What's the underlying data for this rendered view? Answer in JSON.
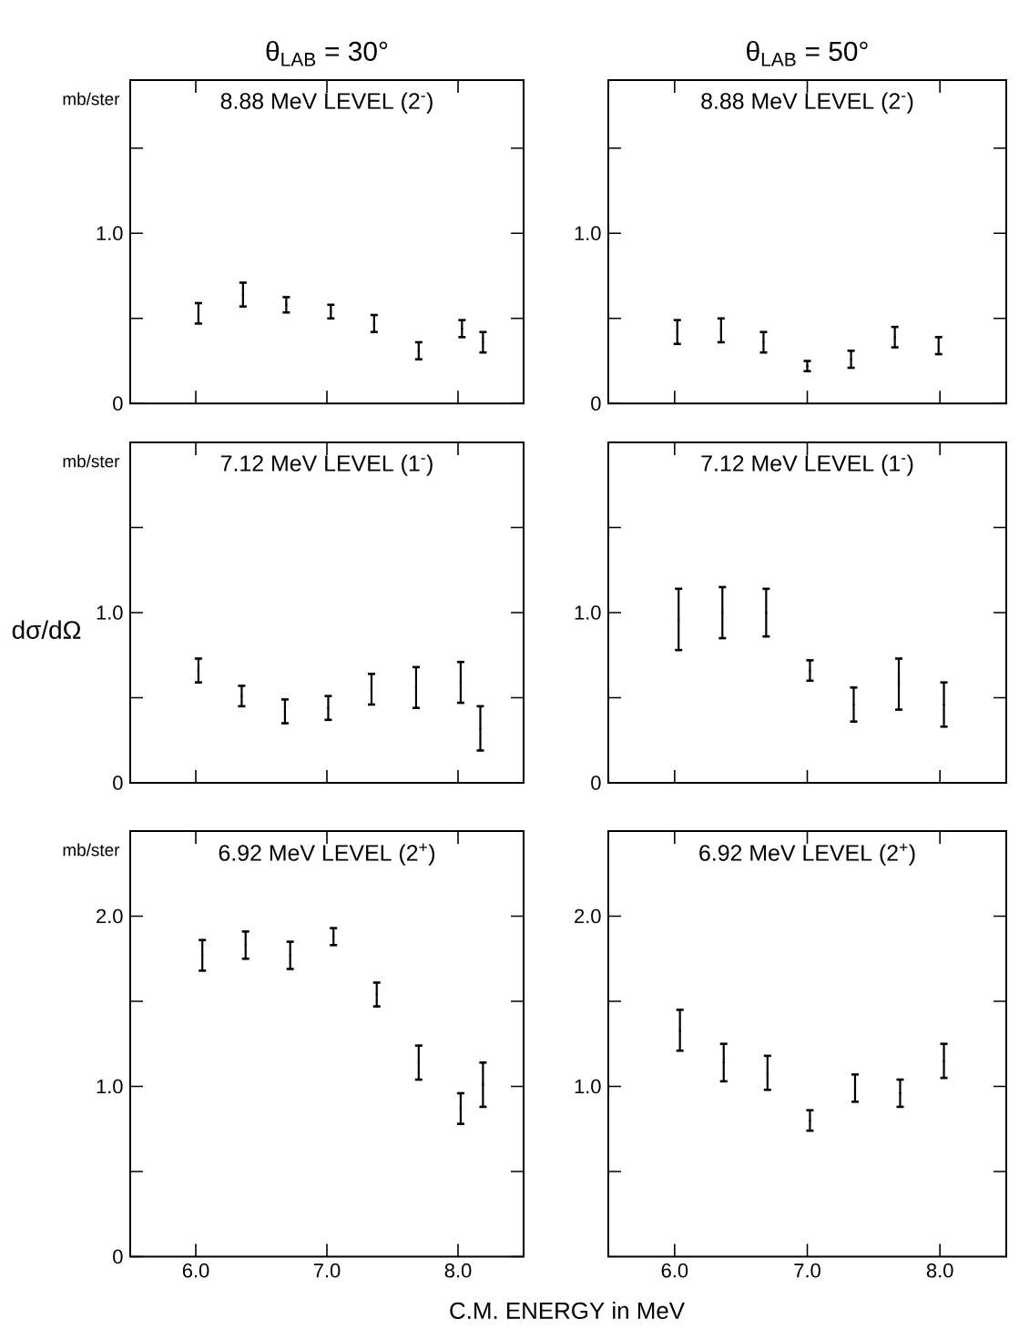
{
  "chart_data": [
    {
      "type": "scatter",
      "title": "8.88 MeV LEVEL (2$^{-}$)",
      "subtitle": "θ$_{LAB}$ = 30°",
      "ylabel": "mb/ster",
      "color": "#000000",
      "x": [
        6.02,
        6.36,
        6.69,
        7.03,
        7.36,
        7.7,
        8.03,
        8.19
      ],
      "values": [
        0.53,
        0.64,
        0.58,
        0.54,
        0.47,
        0.31,
        0.44,
        0.36
      ],
      "errors": [
        0.06,
        0.07,
        0.045,
        0.04,
        0.05,
        0.05,
        0.05,
        0.06
      ],
      "xlim": [
        5.5,
        8.5
      ],
      "xticks": [
        {
          "value": 6,
          "label": null
        },
        {
          "value": 7,
          "label": null
        },
        {
          "value": 8,
          "label": null
        }
      ],
      "ylim": [
        0,
        1.9
      ],
      "yticks": [
        0,
        {
          "value": 0.5,
          "label": null
        },
        {
          "value": 1,
          "label": "1.0"
        },
        {
          "value": 1.5,
          "label": null
        }
      ],
      "tick_labels": "y"
    },
    {
      "type": "scatter",
      "title": "8.88 MeV LEVEL (2$^{-}$)",
      "subtitle": "θ$_{LAB}$ = 50°",
      "color": "#000000",
      "x": [
        6.02,
        6.35,
        6.67,
        7.0,
        7.33,
        7.66,
        7.99
      ],
      "values": [
        0.42,
        0.43,
        0.36,
        0.22,
        0.26,
        0.39,
        0.34
      ],
      "errors": [
        0.07,
        0.07,
        0.06,
        0.03,
        0.05,
        0.06,
        0.05
      ],
      "xlim": [
        5.5,
        8.5
      ],
      "xticks": [
        {
          "value": 6,
          "label": null
        },
        {
          "value": 7,
          "label": null
        },
        {
          "value": 8,
          "label": null
        }
      ],
      "ylim": [
        0,
        1.9
      ],
      "yticks": [
        0,
        {
          "value": 0.5,
          "label": null
        },
        {
          "value": 1,
          "label": "1.0"
        },
        {
          "value": 1.5,
          "label": null
        }
      ],
      "tick_labels": "y"
    },
    {
      "type": "scatter",
      "title": "7.12 MeV LEVEL (1$^{-}$)",
      "ylabel": "mb/ster",
      "annotations": [
        "dσ/dΩ"
      ],
      "color": "#000000",
      "x": [
        6.02,
        6.35,
        6.68,
        7.01,
        7.34,
        7.68,
        8.02,
        8.17
      ],
      "values": [
        0.66,
        0.51,
        0.42,
        0.44,
        0.55,
        0.56,
        0.59,
        0.32
      ],
      "errors": [
        0.07,
        0.06,
        0.07,
        0.07,
        0.09,
        0.12,
        0.12,
        0.13
      ],
      "xlim": [
        5.5,
        8.5
      ],
      "xticks": [
        {
          "value": 6,
          "label": null
        },
        {
          "value": 7,
          "label": null
        },
        {
          "value": 8,
          "label": null
        }
      ],
      "ylim": [
        0,
        2.0
      ],
      "yticks": [
        0,
        {
          "value": 0.5,
          "label": null
        },
        {
          "value": 1,
          "label": "1.0"
        },
        {
          "value": 1.5,
          "label": null
        }
      ],
      "tick_labels": "y"
    },
    {
      "type": "scatter",
      "title": "7.12 MeV LEVEL (1$^{-}$)",
      "color": "#000000",
      "x": [
        6.03,
        6.36,
        6.69,
        7.02,
        7.35,
        7.69,
        8.03
      ],
      "values": [
        0.96,
        1.0,
        1.0,
        0.66,
        0.46,
        0.58,
        0.46
      ],
      "errors": [
        0.18,
        0.15,
        0.14,
        0.06,
        0.1,
        0.15,
        0.13
      ],
      "xlim": [
        5.5,
        8.5
      ],
      "xticks": [
        {
          "value": 6,
          "label": null
        },
        {
          "value": 7,
          "label": null
        },
        {
          "value": 8,
          "label": null
        }
      ],
      "ylim": [
        0,
        2.0
      ],
      "yticks": [
        0,
        {
          "value": 0.5,
          "label": null
        },
        {
          "value": 1,
          "label": "1.0"
        },
        {
          "value": 1.5,
          "label": null
        }
      ],
      "tick_labels": "y"
    },
    {
      "type": "scatter",
      "title": "6.92 MeV LEVEL (2$^{+}$)",
      "ylabel": "mb/ster",
      "xlabel": "C.M. ENERGY in MeV",
      "color": "#000000",
      "x": [
        6.05,
        6.38,
        6.72,
        7.05,
        7.38,
        7.7,
        8.02,
        8.19
      ],
      "values": [
        1.77,
        1.83,
        1.77,
        1.88,
        1.54,
        1.14,
        0.87,
        1.01
      ],
      "errors": [
        0.09,
        0.08,
        0.08,
        0.05,
        0.07,
        0.1,
        0.09,
        0.13
      ],
      "xlim": [
        5.5,
        8.5
      ],
      "xticks": [
        {
          "value": 6,
          "label": "6.0"
        },
        {
          "value": 7,
          "label": "7.0"
        },
        {
          "value": 8,
          "label": "8.0"
        }
      ],
      "ylim": [
        0,
        2.5
      ],
      "yticks": [
        0,
        {
          "value": 0.5,
          "label": null
        },
        {
          "value": 1,
          "label": "1.0"
        },
        {
          "value": 1.5,
          "label": null
        },
        {
          "value": 2,
          "label": "2.0"
        }
      ]
    },
    {
      "type": "scatter",
      "title": "6.92 MeV LEVEL (2$^{+}$)",
      "color": "#000000",
      "x": [
        6.04,
        6.37,
        6.7,
        7.02,
        7.36,
        7.7,
        8.03
      ],
      "values": [
        1.33,
        1.14,
        1.08,
        0.8,
        0.99,
        0.96,
        1.15
      ],
      "errors": [
        0.12,
        0.11,
        0.1,
        0.06,
        0.08,
        0.08,
        0.1
      ],
      "xlim": [
        5.5,
        8.5
      ],
      "xticks": [
        {
          "value": 6,
          "label": "6.0"
        },
        {
          "value": 7,
          "label": "7.0"
        },
        {
          "value": 8,
          "label": "8.0"
        }
      ],
      "ylim": [
        0,
        2.5
      ],
      "yticks": [
        {
          "value": 0.5,
          "label": null
        },
        {
          "value": 1,
          "label": "1.0"
        },
        {
          "value": 1.5,
          "label": null
        },
        {
          "value": 2,
          "label": "2.0"
        }
      ]
    }
  ]
}
